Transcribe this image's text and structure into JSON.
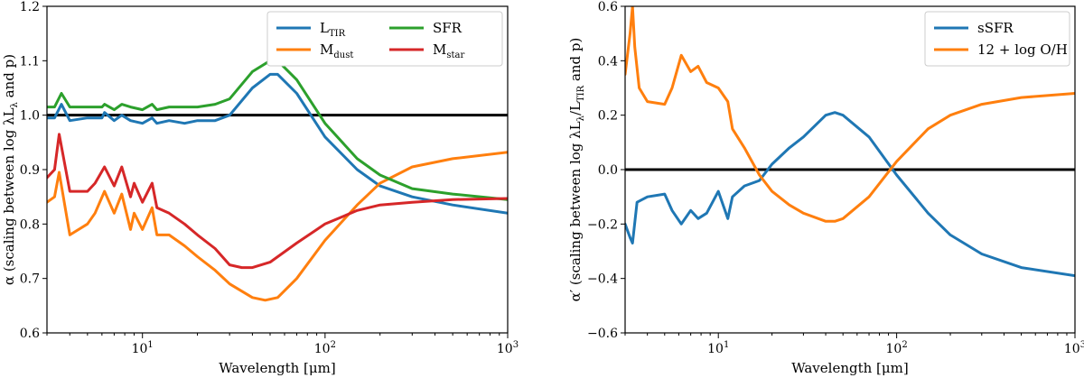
{
  "chart_data": [
    {
      "type": "line",
      "xscale": "log",
      "xlim": [
        3,
        1000
      ],
      "ylim": [
        0.6,
        1.2
      ],
      "xlabel": "Wavelength [μm]",
      "ylabel": "α (scaling between log λL",
      "ylabel_sub": "λ",
      "ylabel_tail": " and p)",
      "yticks": [
        "0.6",
        "0.7",
        "0.8",
        "0.9",
        "1.0",
        "1.1",
        "1.2"
      ],
      "xticks": [
        {
          "base": "10",
          "exp": "1",
          "x": 10
        },
        {
          "base": "10",
          "exp": "2",
          "x": 100
        },
        {
          "base": "10",
          "exp": "3",
          "x": 1000
        }
      ],
      "hline": 1.0,
      "legend": {
        "placement": "top-right",
        "columns": 2
      },
      "series": [
        {
          "name": "L",
          "sub": "TIR",
          "color": "#1f77b4",
          "x": [
            3,
            3.3,
            3.6,
            4,
            5,
            6,
            6.2,
            7,
            7.7,
            8.6,
            10,
            11.3,
            12,
            14,
            17,
            20,
            25,
            30,
            40,
            50,
            55,
            70,
            100,
            150,
            200,
            300,
            500,
            1000
          ],
          "y": [
            0.995,
            0.995,
            1.02,
            0.99,
            0.995,
            0.995,
            1.005,
            0.99,
            1.0,
            0.99,
            0.985,
            0.995,
            0.985,
            0.99,
            0.985,
            0.99,
            0.99,
            1.0,
            1.05,
            1.075,
            1.075,
            1.04,
            0.96,
            0.9,
            0.87,
            0.85,
            0.835,
            0.82
          ]
        },
        {
          "name": "M",
          "sub": "dust",
          "color": "#ff7f0e",
          "x": [
            3,
            3.3,
            3.5,
            4,
            5,
            5.5,
            6.2,
            7,
            7.7,
            8.6,
            9,
            10,
            11.3,
            12,
            14,
            17,
            20,
            25,
            30,
            40,
            47,
            55,
            70,
            100,
            150,
            200,
            300,
            500,
            1000
          ],
          "y": [
            0.84,
            0.85,
            0.895,
            0.78,
            0.8,
            0.82,
            0.86,
            0.82,
            0.855,
            0.79,
            0.82,
            0.79,
            0.83,
            0.78,
            0.78,
            0.76,
            0.74,
            0.715,
            0.69,
            0.665,
            0.66,
            0.665,
            0.7,
            0.77,
            0.835,
            0.875,
            0.905,
            0.92,
            0.932
          ]
        },
        {
          "name": "SFR",
          "sub": "",
          "color": "#2ca02c",
          "x": [
            3,
            3.3,
            3.6,
            4,
            5,
            6,
            6.2,
            7,
            7.7,
            8.6,
            10,
            11.3,
            12,
            14,
            17,
            20,
            25,
            30,
            40,
            50,
            55,
            70,
            100,
            150,
            200,
            300,
            500,
            1000
          ],
          "y": [
            1.015,
            1.015,
            1.04,
            1.015,
            1.015,
            1.015,
            1.02,
            1.01,
            1.02,
            1.015,
            1.01,
            1.02,
            1.01,
            1.015,
            1.015,
            1.015,
            1.02,
            1.03,
            1.08,
            1.1,
            1.1,
            1.065,
            0.985,
            0.92,
            0.89,
            0.865,
            0.855,
            0.845
          ]
        },
        {
          "name": "M",
          "sub": "star",
          "color": "#d62728",
          "x": [
            3,
            3.3,
            3.5,
            4,
            5,
            5.5,
            6.2,
            7,
            7.7,
            8.6,
            9,
            10,
            11.3,
            12,
            14,
            17,
            20,
            25,
            30,
            35,
            40,
            50,
            70,
            100,
            150,
            200,
            300,
            500,
            1000
          ],
          "y": [
            0.885,
            0.9,
            0.965,
            0.86,
            0.86,
            0.875,
            0.905,
            0.87,
            0.905,
            0.85,
            0.875,
            0.84,
            0.875,
            0.83,
            0.82,
            0.8,
            0.78,
            0.755,
            0.725,
            0.72,
            0.72,
            0.73,
            0.765,
            0.8,
            0.825,
            0.835,
            0.84,
            0.845,
            0.847
          ]
        }
      ]
    },
    {
      "type": "line",
      "xscale": "log",
      "xlim": [
        3,
        1000
      ],
      "ylim": [
        -0.6,
        0.6
      ],
      "xlabel": "Wavelength [μm]",
      "ylabel": "α′ (scaling between log λL",
      "ylabel_sub": "λ",
      "ylabel_mid": "/L",
      "ylabel_sub2": "TIR",
      "ylabel_tail": " and p)",
      "yticks": [
        "−0.6",
        "−0.4",
        "−0.2",
        "0.0",
        "0.2",
        "0.4",
        "0.6"
      ],
      "xticks": [
        {
          "base": "10",
          "exp": "1",
          "x": 10
        },
        {
          "base": "10",
          "exp": "2",
          "x": 100
        },
        {
          "base": "10",
          "exp": "3",
          "x": 1000
        }
      ],
      "hline": 0.0,
      "legend": {
        "placement": "top-right",
        "columns": 1
      },
      "series": [
        {
          "name": "sSFR",
          "sub": "",
          "color": "#1f77b4",
          "x": [
            3,
            3.2,
            3.3,
            3.5,
            4,
            5,
            5.5,
            6.2,
            7,
            7.7,
            8.6,
            10,
            11.3,
            12,
            14,
            17,
            20,
            25,
            30,
            40,
            45,
            50,
            70,
            100,
            150,
            200,
            300,
            500,
            1000
          ],
          "y": [
            -0.2,
            -0.25,
            -0.27,
            -0.12,
            -0.1,
            -0.09,
            -0.15,
            -0.2,
            -0.15,
            -0.18,
            -0.16,
            -0.08,
            -0.18,
            -0.1,
            -0.06,
            -0.04,
            0.02,
            0.08,
            0.12,
            0.2,
            0.21,
            0.2,
            0.12,
            -0.02,
            -0.16,
            -0.24,
            -0.31,
            -0.36,
            -0.39
          ]
        },
        {
          "name": "12 + log O/H",
          "sub": "",
          "color": "#ff7f0e",
          "x": [
            3,
            3.2,
            3.3,
            3.4,
            3.6,
            4,
            5,
            5.5,
            6.2,
            7,
            7.7,
            8.6,
            10,
            11.3,
            12,
            14,
            17,
            20,
            25,
            30,
            40,
            45,
            50,
            70,
            100,
            150,
            200,
            300,
            500,
            1000
          ],
          "y": [
            0.35,
            0.5,
            0.6,
            0.45,
            0.3,
            0.25,
            0.24,
            0.3,
            0.42,
            0.36,
            0.38,
            0.32,
            0.3,
            0.25,
            0.15,
            0.08,
            -0.02,
            -0.08,
            -0.13,
            -0.16,
            -0.19,
            -0.19,
            -0.18,
            -0.1,
            0.03,
            0.15,
            0.2,
            0.24,
            0.265,
            0.28
          ]
        }
      ]
    }
  ]
}
